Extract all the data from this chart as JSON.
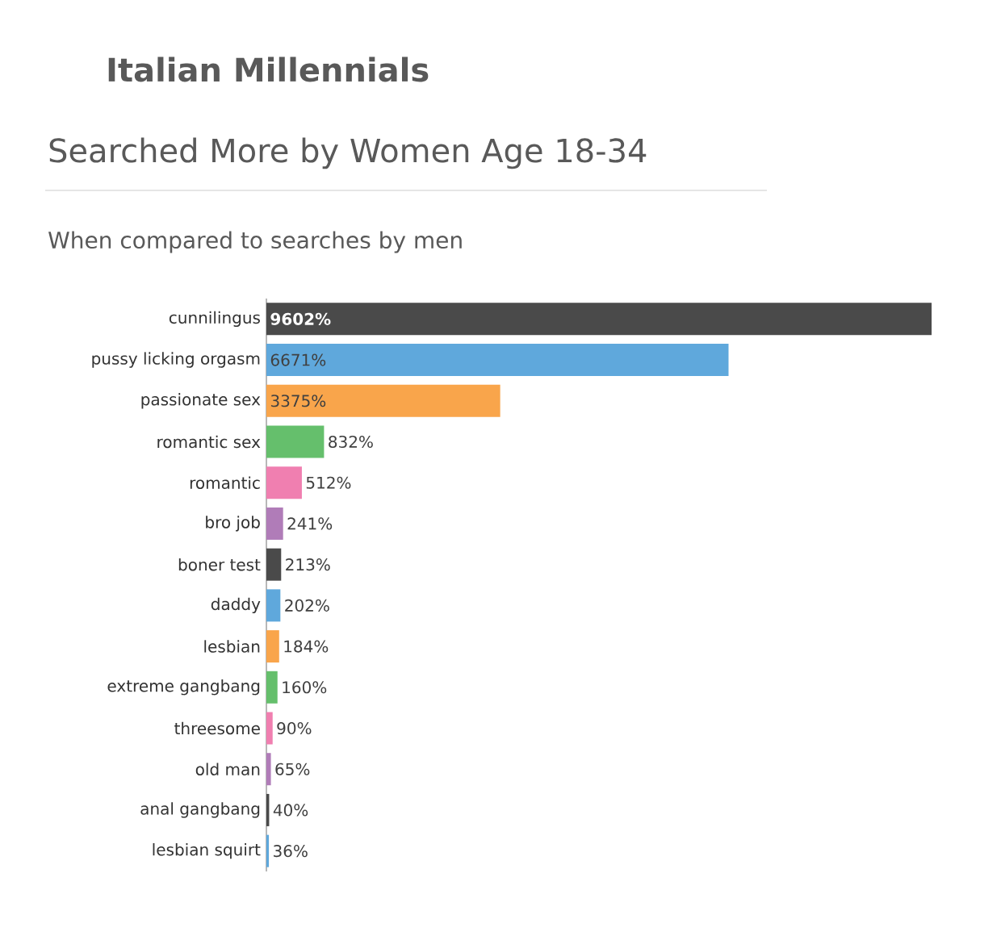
{
  "chart_data": {
    "type": "bar",
    "orientation": "horizontal",
    "title": "Italian Millennials",
    "subtitle": "Searched More by Women Age 18-34",
    "annotations": [
      "When compared to searches by men"
    ],
    "categories": [
      "cunnilingus",
      "pussy licking orgasm",
      "passionate sex",
      "romantic sex",
      "romantic",
      "bro job",
      "boner test",
      "daddy",
      "lesbian",
      "extreme gangbang",
      "threesome",
      "old man",
      "anal gangbang",
      "lesbian squirt"
    ],
    "values": [
      9602,
      6671,
      3375,
      832,
      512,
      241,
      213,
      202,
      184,
      160,
      90,
      65,
      40,
      36
    ],
    "value_labels": [
      "9602%",
      "6671%",
      "3375%",
      "832%",
      "512%",
      "241%",
      "213%",
      "202%",
      "184%",
      "160%",
      "90%",
      "65%",
      "40%",
      "36%"
    ],
    "colors": [
      "#4a4a4a",
      "#5fa8dc",
      "#f9a54b",
      "#65bf6c",
      "#f07fb0",
      "#b07cb8",
      "#4a4a4a",
      "#5fa8dc",
      "#f9a54b",
      "#65bf6c",
      "#f07fb0",
      "#b07cb8",
      "#4a4a4a",
      "#5fa8dc"
    ],
    "grid": false
  }
}
